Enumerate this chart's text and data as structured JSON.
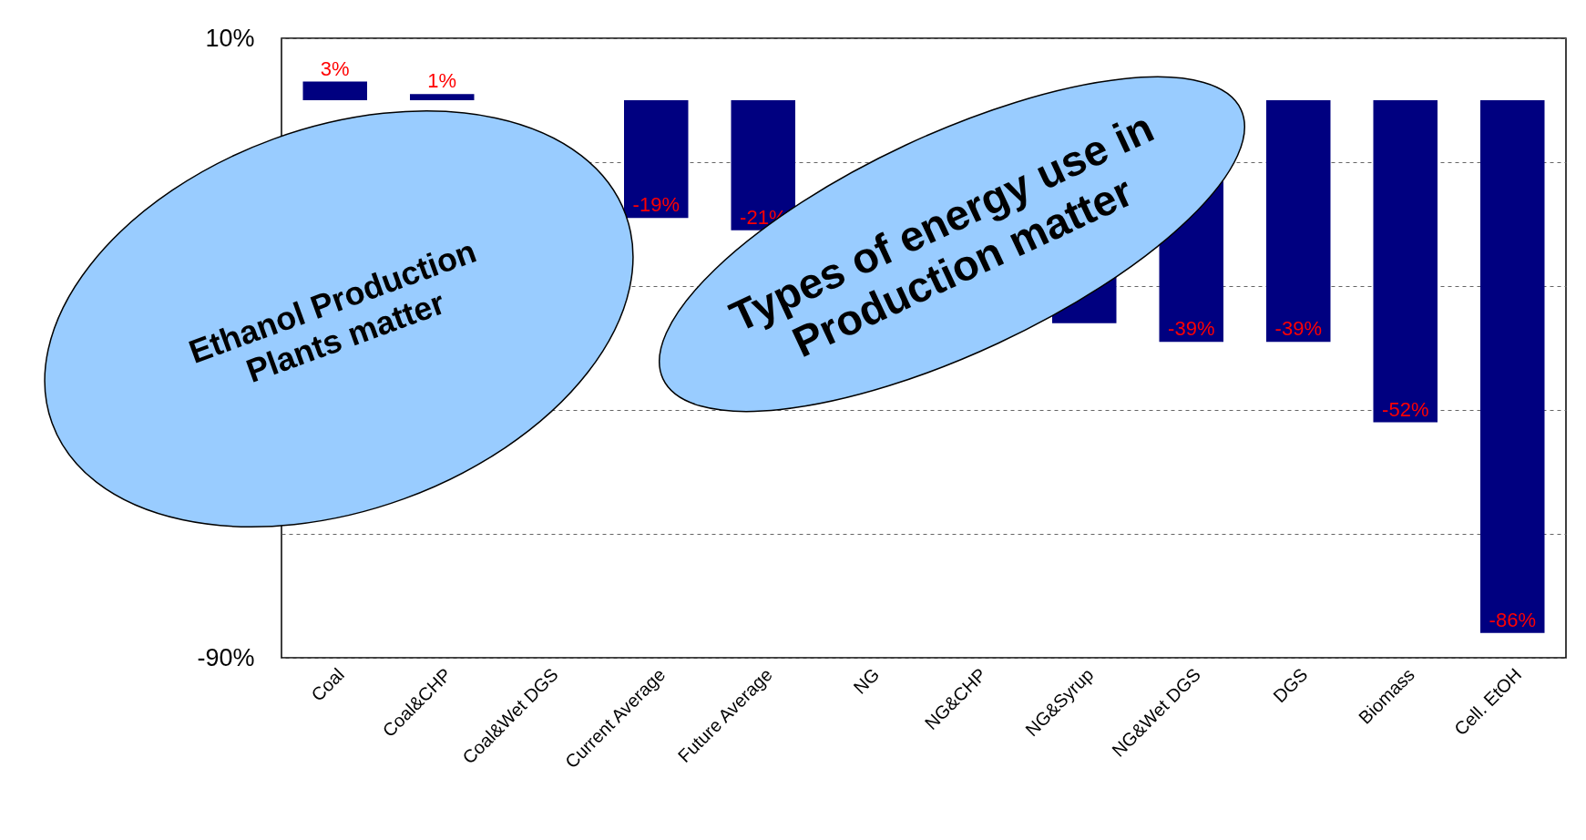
{
  "chart_data": {
    "type": "bar",
    "categories": [
      "Coal",
      "Coal&CHP",
      "Coal&Wet DGS",
      "Current Average",
      "Future Average",
      "NG",
      "NG&CHP",
      "NG&Syrup",
      "NG&Wet DGS",
      "DGS",
      "Biomass",
      "Cell. EtOH"
    ],
    "values": [
      3,
      1,
      null,
      -19,
      -21,
      null,
      null,
      -36,
      -39,
      -39,
      -52,
      -86
    ],
    "value_labels": [
      "3%",
      "1%",
      null,
      "-19%",
      "-21%",
      null,
      null,
      null,
      "-39%",
      "-39%",
      "-52%",
      "-86%"
    ],
    "color": "#000080",
    "ylim": [
      -90,
      10
    ],
    "yticks": [
      {
        "value": 10,
        "label": "10%"
      },
      {
        "value": -10,
        "label": null
      },
      {
        "value": -30,
        "label": null
      },
      {
        "value": -50,
        "label": null
      },
      {
        "value": -70,
        "label": null
      },
      {
        "value": -90,
        "label": "-90%"
      }
    ],
    "grid": "y",
    "annotations": [
      "Ethanol Production Plants matter",
      "Types of energy use in Production matter"
    ]
  }
}
